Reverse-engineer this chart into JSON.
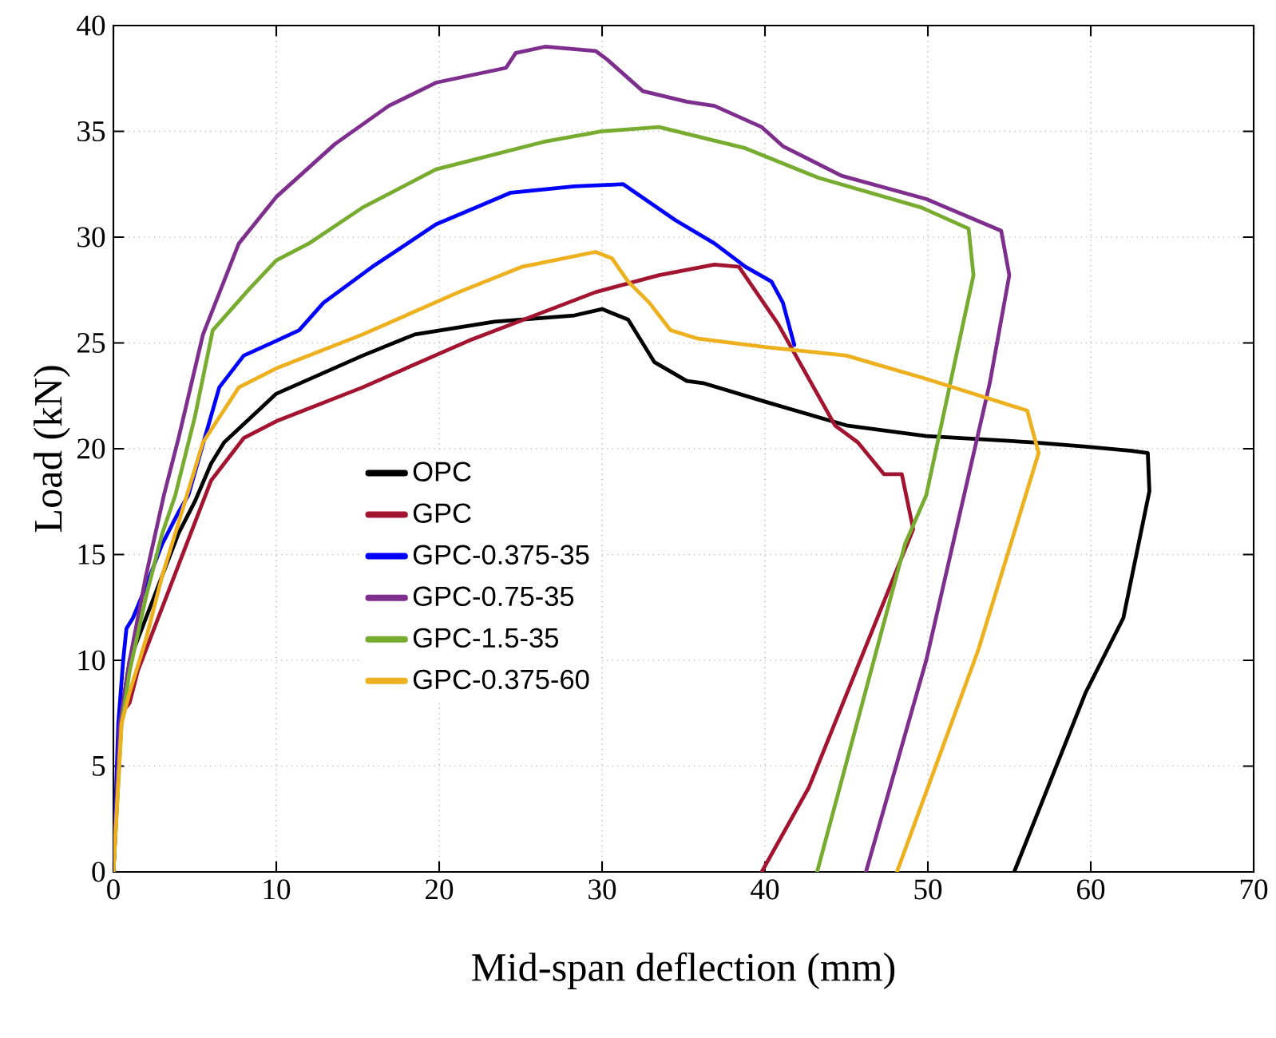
{
  "chart_data": {
    "type": "line",
    "xlabel": "Mid-span deflection (mm)",
    "ylabel": "Load (kN)",
    "xlim": [
      0,
      70
    ],
    "ylim": [
      0,
      40
    ],
    "xticks": [
      0,
      10,
      20,
      30,
      40,
      50,
      60,
      70
    ],
    "yticks": [
      0,
      5,
      10,
      15,
      20,
      25,
      30,
      35,
      40
    ],
    "grid": true,
    "legend": "center left",
    "line_style": "solid",
    "marker": "none",
    "series": [
      {
        "name": "OPC",
        "color": "#000000",
        "x": [
          0,
          0.4,
          1,
          2,
          3,
          4,
          5,
          6,
          6.8,
          10,
          15.3,
          18.5,
          23.4,
          28.3,
          30,
          31.6,
          33.2,
          35.2,
          36.2,
          40.1,
          45,
          49.9,
          56.5,
          59.7,
          62.5,
          63.5,
          63.6,
          62,
          59.7,
          55.3
        ],
        "values": [
          0,
          7,
          10,
          12,
          14,
          16,
          17.5,
          19.3,
          20.3,
          22.6,
          24.4,
          25.4,
          26,
          26.3,
          26.6,
          26.1,
          24.1,
          23.2,
          23.1,
          22.2,
          21.1,
          20.6,
          20.3,
          20.1,
          19.9,
          19.8,
          18,
          12,
          8.5,
          0
        ]
      },
      {
        "name": "GPC",
        "color": "#a2142f",
        "x": [
          0,
          0.5,
          1,
          1.5,
          2.5,
          4,
          5,
          6,
          7,
          8,
          10,
          15.3,
          21.8,
          29.6,
          33.5,
          36.9,
          38.4,
          40.8,
          44.3,
          45.7,
          47.3,
          48.4,
          49.1,
          42.7,
          39.8
        ],
        "values": [
          0,
          7.5,
          8,
          9.5,
          11.5,
          14.5,
          16.5,
          18.5,
          19.5,
          20.5,
          21.3,
          22.9,
          25.1,
          27.4,
          28.2,
          28.7,
          28.6,
          25.9,
          21.1,
          20.3,
          18.8,
          18.8,
          16.2,
          4,
          0
        ]
      },
      {
        "name": "GPC-0.375-35",
        "color": "#0000ff",
        "x": [
          0,
          0.3,
          0.6,
          0.8,
          1.2,
          2,
          3,
          4,
          4.6,
          6.5,
          8,
          10,
          11.4,
          12.9,
          15.9,
          19.8,
          24.4,
          28.3,
          31.3,
          34.5,
          36.9,
          38.8,
          40.4,
          41.1,
          41.8
        ],
        "values": [
          0,
          7,
          10,
          11.5,
          12,
          13.5,
          15.5,
          17,
          17.8,
          22.9,
          24.4,
          25.1,
          25.6,
          26.9,
          28.6,
          30.6,
          32.1,
          32.4,
          32.5,
          30.8,
          29.7,
          28.6,
          27.9,
          26.9,
          24.9
        ]
      },
      {
        "name": "GPC-0.75-35",
        "color": "#7e2f8e",
        "x": [
          0,
          0.4,
          1,
          2,
          3.1,
          4,
          5.5,
          7.7,
          10,
          13.6,
          16.9,
          19.8,
          24.1,
          24.7,
          26.5,
          29.6,
          30.3,
          32.5,
          35.2,
          36.9,
          39.8,
          41.1,
          44.7,
          49.9,
          54.5,
          55,
          53.8,
          49.9,
          46.2
        ],
        "values": [
          0,
          7,
          10,
          14,
          17.8,
          20.5,
          25.4,
          29.7,
          31.9,
          34.4,
          36.2,
          37.3,
          38,
          38.7,
          39,
          38.8,
          38.4,
          36.9,
          36.4,
          36.2,
          35.2,
          34.3,
          32.9,
          31.8,
          30.3,
          28.2,
          23.1,
          10,
          0
        ]
      },
      {
        "name": "GPC-1.5-35",
        "color": "#77ac30",
        "x": [
          0,
          0.5,
          1,
          2,
          3,
          3.8,
          5,
          6.1,
          8.4,
          10,
          12,
          15.3,
          19.8,
          26.4,
          30,
          33.5,
          38.8,
          43.3,
          49.6,
          52.5,
          52.8,
          49.9,
          48.6,
          43.2
        ],
        "values": [
          0,
          7,
          9.5,
          13,
          16,
          17.8,
          21.5,
          25.6,
          27.6,
          28.9,
          29.7,
          31.4,
          33.2,
          34.5,
          35,
          35.2,
          34.2,
          32.8,
          31.4,
          30.4,
          28.2,
          17.8,
          15.5,
          0
        ]
      },
      {
        "name": "GPC-0.375-60",
        "color": "#edb120",
        "x": [
          0,
          0.5,
          1,
          2,
          3,
          4,
          5.5,
          7.7,
          10,
          15.3,
          21.2,
          25.1,
          29.6,
          30.6,
          31.6,
          32.9,
          34.2,
          35.9,
          40.1,
          45,
          49.9,
          56.1,
          56.8,
          53.1,
          48.1
        ],
        "values": [
          0,
          7,
          8.5,
          11,
          14,
          16.5,
          20.3,
          22.9,
          23.8,
          25.4,
          27.4,
          28.6,
          29.3,
          29,
          27.9,
          26.9,
          25.6,
          25.2,
          24.8,
          24.4,
          23.3,
          21.8,
          19.8,
          10.5,
          0
        ]
      }
    ]
  }
}
